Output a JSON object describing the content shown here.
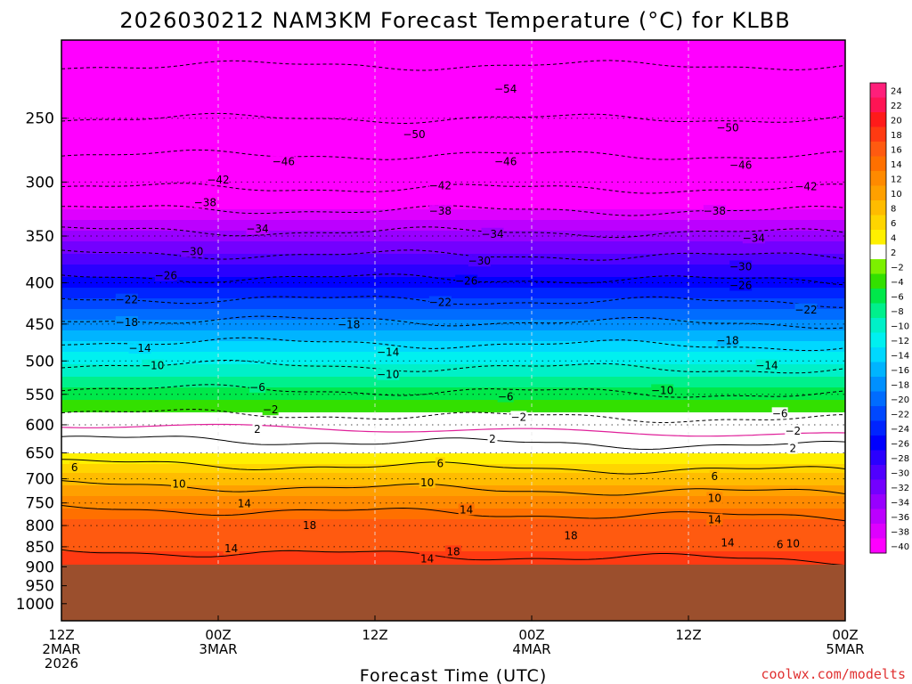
{
  "title": "2026030212 NAM3KM Forecast Temperature (°C) for KLBB",
  "xlabel": "Forecast Time (UTC)",
  "credit": "coolwx.com/modelts",
  "chart_data": {
    "type": "heatmap",
    "title": "2026030212 NAM3KM Forecast Temperature (°C) for KLBB",
    "xlabel": "Forecast Time (UTC)",
    "ylabel": "",
    "x_ticks": [
      {
        "hour": 0,
        "lines": [
          "12Z",
          "2MAR",
          "2026"
        ]
      },
      {
        "hour": 12,
        "lines": [
          "00Z",
          "3MAR"
        ]
      },
      {
        "hour": 24,
        "lines": [
          "12Z"
        ]
      },
      {
        "hour": 36,
        "lines": [
          "00Z",
          "4MAR"
        ]
      },
      {
        "hour": 48,
        "lines": [
          "12Z"
        ]
      },
      {
        "hour": 60,
        "lines": [
          "00Z",
          "5MAR"
        ]
      }
    ],
    "xlim_hours": [
      0,
      60
    ],
    "y_ticks": [
      250,
      300,
      350,
      400,
      450,
      500,
      550,
      600,
      650,
      700,
      750,
      800,
      850,
      900,
      950,
      1000
    ],
    "ylim_hPa": [
      1050,
      200
    ],
    "y_scale": "log-pressure",
    "ground_pressure_hPa": 900,
    "ground_color": "#9b4f2d",
    "colorbar": {
      "labels": [
        24,
        22,
        20,
        18,
        16,
        14,
        12,
        10,
        8,
        6,
        4,
        2,
        -2,
        -4,
        -6,
        -8,
        -10,
        -12,
        -14,
        -16,
        -18,
        -20,
        -22,
        -24,
        -26,
        -28,
        -30,
        -32,
        -34,
        -36,
        -38,
        -40
      ]
    },
    "contour_profile": {
      "pressure_hPa": [
        900,
        850,
        800,
        750,
        700,
        650,
        600,
        550,
        500,
        450,
        400,
        350,
        300,
        250,
        215
      ],
      "temperature_C": [
        20,
        17.5,
        17,
        13,
        9,
        4,
        0,
        -5,
        -10.5,
        -17,
        -25,
        -33,
        -43,
        -50,
        -54
      ]
    },
    "contour_labels": [
      {
        "value": "-54",
        "hour": 34,
        "p": 230
      },
      {
        "value": "-50",
        "hour": 27,
        "p": 262
      },
      {
        "value": "-50",
        "hour": 51,
        "p": 257
      },
      {
        "value": "-46",
        "hour": 17,
        "p": 283
      },
      {
        "value": "-46",
        "hour": 34,
        "p": 283
      },
      {
        "value": "-46",
        "hour": 52,
        "p": 286
      },
      {
        "value": "-42",
        "hour": 12,
        "p": 298
      },
      {
        "value": "-42",
        "hour": 29,
        "p": 303
      },
      {
        "value": "-42",
        "hour": 57,
        "p": 304
      },
      {
        "value": "-38",
        "hour": 11,
        "p": 318
      },
      {
        "value": "-38",
        "hour": 29,
        "p": 326
      },
      {
        "value": "-38",
        "hour": 50,
        "p": 326
      },
      {
        "value": "-34",
        "hour": 15,
        "p": 343
      },
      {
        "value": "-34",
        "hour": 33,
        "p": 348
      },
      {
        "value": "-34",
        "hour": 53,
        "p": 352
      },
      {
        "value": "-30",
        "hour": 10,
        "p": 366
      },
      {
        "value": "-30",
        "hour": 32,
        "p": 376
      },
      {
        "value": "-30",
        "hour": 52,
        "p": 382
      },
      {
        "value": "-26",
        "hour": 8,
        "p": 392
      },
      {
        "value": "-26",
        "hour": 31,
        "p": 398
      },
      {
        "value": "-26",
        "hour": 52,
        "p": 403
      },
      {
        "value": "-22",
        "hour": 5,
        "p": 420
      },
      {
        "value": "-22",
        "hour": 29,
        "p": 423
      },
      {
        "value": "-22",
        "hour": 57,
        "p": 432
      },
      {
        "value": "-18",
        "hour": 5,
        "p": 448
      },
      {
        "value": "-18",
        "hour": 22,
        "p": 451
      },
      {
        "value": "-18",
        "hour": 51,
        "p": 472
      },
      {
        "value": "-14",
        "hour": 6,
        "p": 482
      },
      {
        "value": "-14",
        "hour": 25,
        "p": 488
      },
      {
        "value": "-14",
        "hour": 54,
        "p": 507
      },
      {
        "value": "-10",
        "hour": 7,
        "p": 507
      },
      {
        "value": "-10",
        "hour": 25,
        "p": 520
      },
      {
        "value": "-10",
        "hour": 46,
        "p": 544
      },
      {
        "value": "-6",
        "hour": 15,
        "p": 539
      },
      {
        "value": "-6",
        "hour": 34,
        "p": 554
      },
      {
        "value": "-6",
        "hour": 55,
        "p": 581
      },
      {
        "value": "-2",
        "hour": 16,
        "p": 575
      },
      {
        "value": "-2",
        "hour": 35,
        "p": 587
      },
      {
        "value": "-2",
        "hour": 56,
        "p": 611
      },
      {
        "value": "2",
        "hour": 15,
        "p": 608
      },
      {
        "value": "2",
        "hour": 33,
        "p": 625
      },
      {
        "value": "2",
        "hour": 56,
        "p": 642
      },
      {
        "value": "6",
        "hour": 1,
        "p": 678
      },
      {
        "value": "6",
        "hour": 29,
        "p": 670
      },
      {
        "value": "6",
        "hour": 50,
        "p": 695
      },
      {
        "value": "10",
        "hour": 9,
        "p": 711
      },
      {
        "value": "10",
        "hour": 28,
        "p": 708
      },
      {
        "value": "10",
        "hour": 50,
        "p": 740
      },
      {
        "value": "14",
        "hour": 14,
        "p": 752
      },
      {
        "value": "14",
        "hour": 31,
        "p": 765
      },
      {
        "value": "14",
        "hour": 50,
        "p": 787
      },
      {
        "value": "18",
        "hour": 19,
        "p": 800
      },
      {
        "value": "18",
        "hour": 39,
        "p": 824
      },
      {
        "value": "14",
        "hour": 13,
        "p": 855
      },
      {
        "value": "18",
        "hour": 30,
        "p": 862
      },
      {
        "value": "14",
        "hour": 28,
        "p": 880
      },
      {
        "value": "14",
        "hour": 51,
        "p": 840
      },
      {
        "value": "6",
        "hour": 55,
        "p": 845
      },
      {
        "value": "10",
        "hour": 56,
        "p": 843
      }
    ]
  }
}
